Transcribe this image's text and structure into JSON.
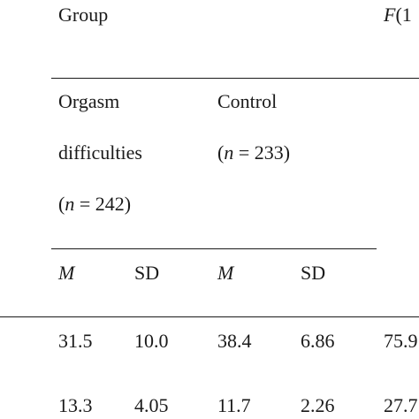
{
  "header": {
    "group_label": "Group",
    "stat_label_italic": "F",
    "stat_label_rest": "(1"
  },
  "groups": {
    "orgasm": {
      "line1": "Orgasm",
      "line2": "difficulties",
      "n_open": "(",
      "n_italic": "n",
      "n_rest": " = 242)"
    },
    "control": {
      "line1": "Control",
      "n_open": "(",
      "n_italic": "n",
      "n_rest": " = 233)"
    }
  },
  "subheaders": {
    "orgasm_mean": "M",
    "orgasm_sd": "SD",
    "control_mean": "M",
    "control_sd": "SD"
  },
  "rows": [
    {
      "orgasm_mean": "31.5",
      "orgasm_sd": "10.0",
      "control_mean": "38.4",
      "control_sd": "6.86",
      "f": "75.9"
    },
    {
      "orgasm_mean": "13.3",
      "orgasm_sd": "4.05",
      "control_mean": "11.7",
      "control_sd": "2.26",
      "f": "27.7"
    }
  ]
}
